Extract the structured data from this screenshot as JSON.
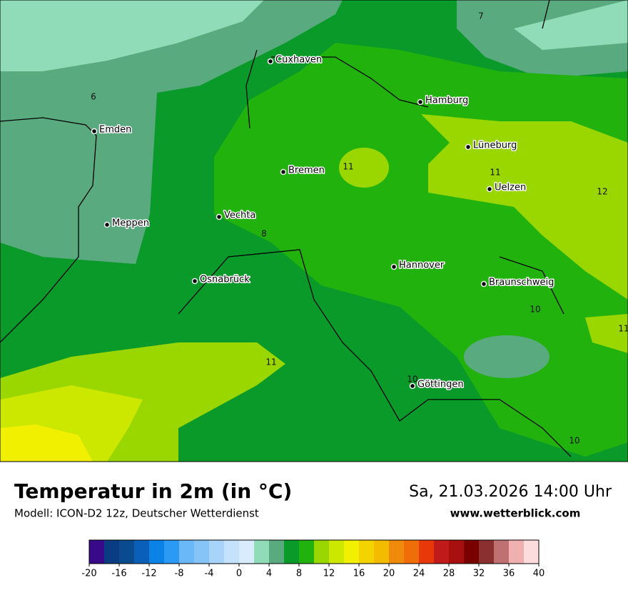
{
  "map": {
    "cities": [
      "Cuxhaven",
      "Hamburg",
      "Emden",
      "Lüneburg",
      "Bremen",
      "Uelzen",
      "Vechta",
      "Meppen",
      "Hannover",
      "Osnabrück",
      "Braunschweig",
      "Göttingen"
    ],
    "contour_labels": [
      7,
      6,
      11,
      11,
      12,
      8,
      10,
      11,
      11,
      10,
      10
    ]
  },
  "title": "Temperatur in 2m (in °C)",
  "subtitle": "Modell: ICON-D2 12z, Deutscher Wetterdienst",
  "datetime": "Sa, 21.03.2026 14:00 Uhr",
  "website": "www.wetterblick.com",
  "colorbar": {
    "ticks": [
      -20,
      -16,
      -12,
      -8,
      -4,
      0,
      4,
      8,
      12,
      16,
      20,
      24,
      28,
      32,
      36,
      40
    ],
    "colors": [
      "#380a8a",
      "#0a3c82",
      "#0a4a8e",
      "#0a5fb8",
      "#0a82e6",
      "#2a9af5",
      "#6ab8f8",
      "#86c4f8",
      "#a8d4fa",
      "#c4e2fc",
      "#d8ecfe",
      "#90dcb8",
      "#5aaa80",
      "#0a9a2a",
      "#22b20e",
      "#9ad600",
      "#cce800",
      "#f0f000",
      "#f4d400",
      "#f4bc00",
      "#f08a0a",
      "#f06e0a",
      "#e8380a",
      "#c01a1a",
      "#a81010",
      "#7a0000",
      "#8a3030",
      "#c07070",
      "#f0b0b0",
      "#fcdcdc"
    ]
  }
}
